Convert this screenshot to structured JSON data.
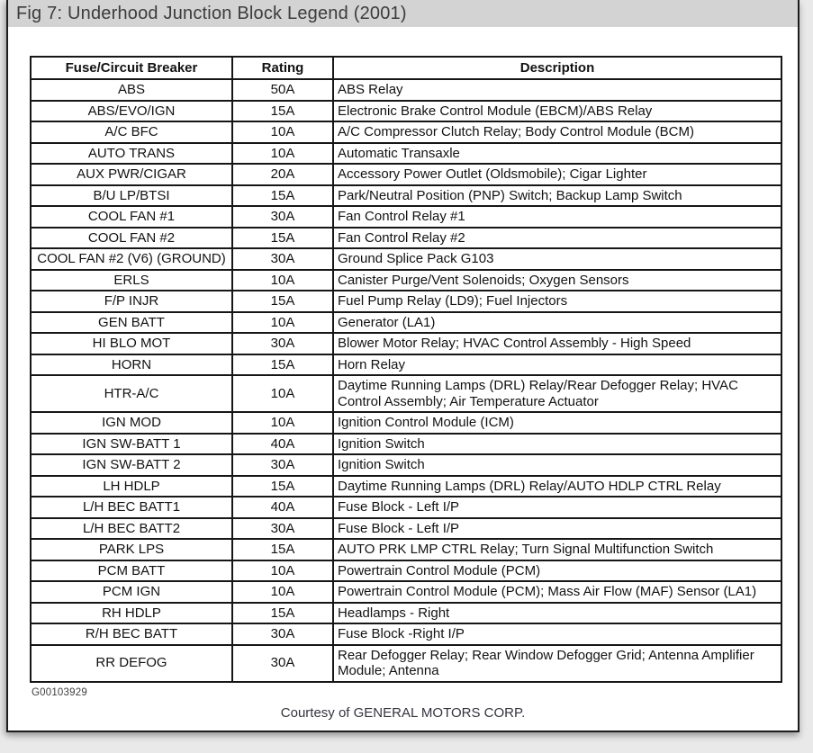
{
  "page": {
    "title": "Fig 7: Underhood Junction Block Legend (2001)",
    "figure_id": "G00103929",
    "credit": "Courtesy of GENERAL MOTORS CORP."
  },
  "colors": {
    "title_bar_bg": "#d3d3d3",
    "title_text": "#3c3c3c",
    "document_bg": "#ffffff",
    "page_bg": "#e9e9e9",
    "table_border": "#161616",
    "table_text": "#121212"
  },
  "table": {
    "columns": [
      "Fuse/Circuit Breaker",
      "Rating",
      "Description"
    ],
    "rows": [
      {
        "fuse": "ABS",
        "rating": "50A",
        "description": "ABS Relay"
      },
      {
        "fuse": "ABS/EVO/IGN",
        "rating": "15A",
        "description": "Electronic Brake Control Module  (EBCM)/ABS Relay"
      },
      {
        "fuse": "A/C BFC",
        "rating": "10A",
        "description": "A/C Compressor Clutch Relay; Body Control Module  (BCM)"
      },
      {
        "fuse": "AUTO TRANS",
        "rating": "10A",
        "description": "Automatic Transaxle"
      },
      {
        "fuse": "AUX PWR/CIGAR",
        "rating": "20A",
        "description": "Accessory Power Outlet (Oldsmobile); Cigar Lighter"
      },
      {
        "fuse": "B/U LP/BTSI",
        "rating": "15A",
        "description": "Park/Neutral Position   (PNP) Switch; Backup Lamp Switch"
      },
      {
        "fuse": "COOL FAN #1",
        "rating": "30A",
        "description": "Fan Control Relay #1"
      },
      {
        "fuse": "COOL FAN #2",
        "rating": "15A",
        "description": "Fan Control Relay #2"
      },
      {
        "fuse": "COOL FAN #2 (V6) (GROUND)",
        "rating": "30A",
        "description": "Ground Splice Pack G103"
      },
      {
        "fuse": "ERLS",
        "rating": "10A",
        "description": "Canister Purge/Vent Solenoids; Oxygen Sensors"
      },
      {
        "fuse": "F/P INJR",
        "rating": "15A",
        "description": "Fuel Pump Relay (LD9); Fuel Injectors"
      },
      {
        "fuse": "GEN BATT",
        "rating": "10A",
        "description": "Generator (LA1)"
      },
      {
        "fuse": "HI BLO MOT",
        "rating": "30A",
        "description": "Blower Motor Relay; HVAC Control Assembly - High Speed"
      },
      {
        "fuse": "HORN",
        "rating": "15A",
        "description": "Horn Relay"
      },
      {
        "fuse": "HTR-A/C",
        "rating": "10A",
        "description": "Daytime Running Lamps   (DRL) Relay/Rear Defogger Relay; HVAC Control Assembly; Air Temperature Actuator"
      },
      {
        "fuse": "IGN MOD",
        "rating": "10A",
        "description": "Ignition Control Module  (ICM)"
      },
      {
        "fuse": "IGN SW-BATT 1",
        "rating": "40A",
        "description": "Ignition Switch"
      },
      {
        "fuse": "IGN SW-BATT 2",
        "rating": "30A",
        "description": "Ignition Switch"
      },
      {
        "fuse": "LH HDLP",
        "rating": "15A",
        "description": "Daytime Running Lamps   (DRL) Relay/AUTO HDLP CTRL Relay"
      },
      {
        "fuse": "L/H BEC BATT1",
        "rating": "40A",
        "description": "Fuse Block - Left I/P"
      },
      {
        "fuse": "L/H BEC BATT2",
        "rating": "30A",
        "description": "Fuse Block - Left I/P"
      },
      {
        "fuse": "PARK LPS",
        "rating": "15A",
        "description": "AUTO PRK LMP CTRL Relay; Turn Signal Multifunction Switch"
      },
      {
        "fuse": "PCM BATT",
        "rating": "10A",
        "description": "Powertrain Control Module  (PCM)"
      },
      {
        "fuse": "PCM IGN",
        "rating": "10A",
        "description": "Powertrain Control Module  (PCM); Mass Air Flow (MAF) Sensor (LA1)"
      },
      {
        "fuse": "RH HDLP",
        "rating": "15A",
        "description": "Headlamps - Right"
      },
      {
        "fuse": "R/H BEC BATT",
        "rating": "30A",
        "description": "Fuse Block -Right I/P"
      },
      {
        "fuse": "RR DEFOG",
        "rating": "30A",
        "description": "Rear Defogger Relay; Rear Window Defogger Grid; Antenna Amplifier Module; Antenna"
      }
    ]
  }
}
